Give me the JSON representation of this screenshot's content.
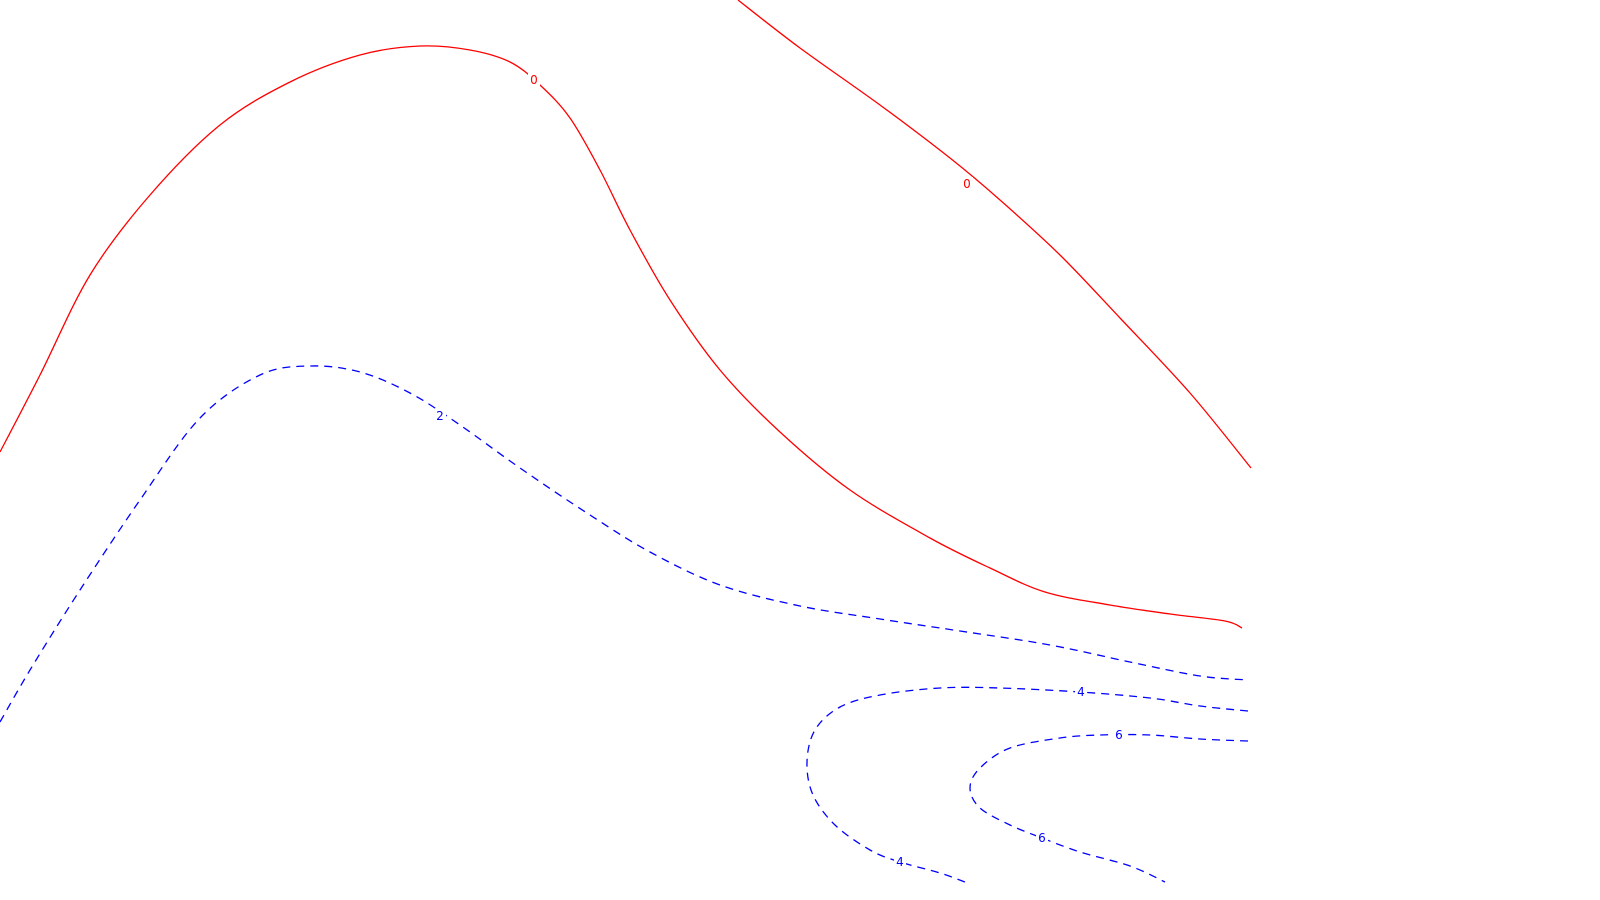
{
  "chart_data": {
    "type": "contour",
    "title": "",
    "xlabel": "",
    "ylabel": "",
    "grid": false,
    "legend": "none",
    "levels": [
      {
        "value": 0,
        "label": "0",
        "color": "#ff0000",
        "style": "solid"
      },
      {
        "value": 2,
        "label": "2",
        "color": "#0000ff",
        "style": "dashed"
      },
      {
        "value": 4,
        "label": "4",
        "color": "#0000ff",
        "style": "dashed"
      },
      {
        "value": 6,
        "label": "6",
        "color": "#0000ff",
        "style": "dashed"
      }
    ]
  }
}
